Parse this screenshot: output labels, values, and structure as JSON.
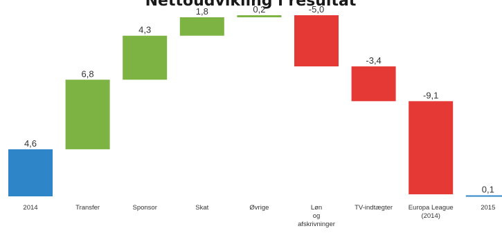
{
  "chart_data": {
    "type": "bar",
    "subtype": "waterfall",
    "title": "Nettoudvikling i resultat",
    "categories": [
      "2014",
      "Transfer",
      "Sponsor",
      "Skat",
      "Øvrige",
      "Løn og afskrivninger",
      "TV-indtægter",
      "Europa League (2014)",
      "2015"
    ],
    "category_label_lines": [
      [
        "2014"
      ],
      [
        "Transfer"
      ],
      [
        "Sponsor"
      ],
      [
        "Skat"
      ],
      [
        "Øvrige"
      ],
      [
        "Løn",
        "og",
        "afskrivninger"
      ],
      [
        "TV-indtægter"
      ],
      [
        "Europa League",
        "(2014)"
      ],
      [
        "2015"
      ]
    ],
    "values": [
      4.6,
      6.8,
      4.3,
      1.8,
      0.2,
      -5.0,
      -3.4,
      -9.1,
      0.1
    ],
    "value_labels": [
      "4,6",
      "6,8",
      "4,3",
      "1,8",
      "0,2",
      "-5,0",
      "-3,4",
      "-9,1",
      "0,1"
    ],
    "kinds": [
      "total",
      "delta",
      "delta",
      "delta",
      "delta",
      "delta",
      "delta",
      "delta",
      "total"
    ],
    "colors": {
      "total": "#2e86c8",
      "increase": "#7cb342",
      "decrease": "#e53935"
    },
    "ylim": [
      0,
      17.8
    ],
    "grid": false,
    "legend": "none"
  }
}
